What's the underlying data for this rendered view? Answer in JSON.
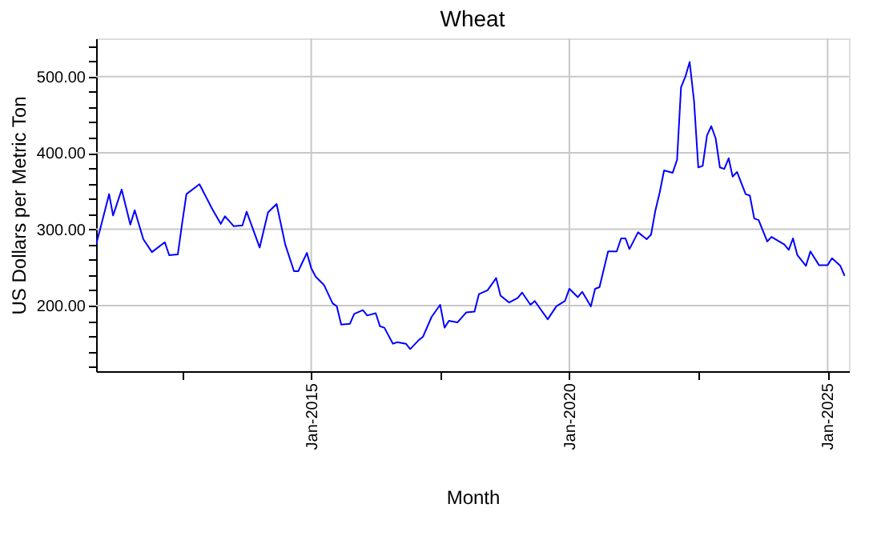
{
  "chart_data": {
    "type": "line",
    "title": "Wheat",
    "xlabel": "Month",
    "ylabel": "US Dollars per Metric Ton",
    "x": [
      "2010-11",
      "2010-12",
      "2011-02",
      "2011-03",
      "2011-05",
      "2011-07",
      "2011-08",
      "2011-10",
      "2011-12",
      "2012-03",
      "2012-04",
      "2012-06",
      "2012-07",
      "2012-08",
      "2012-11",
      "2013-02",
      "2013-04",
      "2013-05",
      "2013-07",
      "2013-09",
      "2013-10",
      "2014-01",
      "2014-03",
      "2014-05",
      "2014-07",
      "2014-09",
      "2014-10",
      "2014-12",
      "2015-01",
      "2015-02",
      "2015-04",
      "2015-06",
      "2015-07",
      "2015-08",
      "2015-10",
      "2015-11",
      "2016-01",
      "2016-02",
      "2016-04",
      "2016-05",
      "2016-06",
      "2016-08",
      "2016-09",
      "2016-11",
      "2016-12",
      "2017-02",
      "2017-03",
      "2017-05",
      "2017-07",
      "2017-08",
      "2017-09",
      "2017-11",
      "2018-01",
      "2018-03",
      "2018-04",
      "2018-06",
      "2018-08",
      "2018-09",
      "2018-11",
      "2019-01",
      "2019-02",
      "2019-04",
      "2019-05",
      "2019-08",
      "2019-10",
      "2019-12",
      "2020-01",
      "2020-03",
      "2020-04",
      "2020-06",
      "2020-07",
      "2020-08",
      "2020-10",
      "2020-12",
      "2021-01",
      "2021-02",
      "2021-03",
      "2021-05",
      "2021-07",
      "2021-08",
      "2021-09",
      "2021-10",
      "2021-11",
      "2022-01",
      "2022-02",
      "2022-03",
      "2022-04",
      "2022-05",
      "2022-06",
      "2022-07",
      "2022-08",
      "2022-09",
      "2022-10",
      "2022-11",
      "2022-12",
      "2023-01",
      "2023-02",
      "2023-03",
      "2023-04",
      "2023-06",
      "2023-07",
      "2023-08",
      "2023-09",
      "2023-11",
      "2023-12",
      "2024-03",
      "2024-04",
      "2024-05",
      "2024-06",
      "2024-08",
      "2024-09",
      "2024-11",
      "2025-01",
      "2025-02",
      "2025-04",
      "2025-05"
    ],
    "series": [
      {
        "color": "#0000ff",
        "values": [
          280,
          301,
          346,
          318,
          352,
          306,
          325,
          287,
          270,
          283,
          266,
          267,
          307,
          346,
          359,
          326,
          307,
          317,
          304,
          305,
          323,
          276,
          322,
          333,
          280,
          245,
          245,
          269,
          249,
          238,
          227,
          203,
          199,
          175,
          176,
          189,
          194,
          187,
          190,
          173,
          171,
          150,
          152,
          150,
          143,
          155,
          159,
          185,
          201,
          171,
          180,
          178,
          191,
          192,
          215,
          220,
          236,
          213,
          204,
          210,
          217,
          201,
          206,
          182,
          199,
          206,
          222,
          211,
          218,
          199,
          222,
          224,
          271,
          271,
          288,
          288,
          274,
          296,
          287,
          293,
          325,
          348,
          377,
          374,
          391,
          486,
          500,
          519,
          468,
          381,
          383,
          423,
          435,
          419,
          381,
          379,
          393,
          369,
          375,
          346,
          344,
          314,
          312,
          284,
          290,
          280,
          273,
          288,
          266,
          252,
          271,
          253,
          253,
          262,
          252,
          239
        ]
      }
    ],
    "xlim": [
      "2010-11-01",
      "2025-06-01"
    ],
    "xticks": [
      {
        "value": "2012-07-01",
        "label": null
      },
      {
        "value": "2015-01-01",
        "label": "Jan-2015"
      },
      {
        "value": "2017-07-01",
        "label": null
      },
      {
        "value": "2020-01-01",
        "label": "Jan-2020"
      },
      {
        "value": "2022-07-01",
        "label": null
      },
      {
        "value": "2025-01-01",
        "label": "Jan-2025"
      }
    ],
    "ylim": [
      114,
      550
    ],
    "yticks": [
      {
        "value": 120,
        "label": null
      },
      {
        "value": 140,
        "label": null
      },
      {
        "value": 160,
        "label": null
      },
      {
        "value": 180,
        "label": null
      },
      {
        "value": 200,
        "label": "200.00"
      },
      {
        "value": 220,
        "label": null
      },
      {
        "value": 240,
        "label": null
      },
      {
        "value": 260,
        "label": null
      },
      {
        "value": 280,
        "label": null
      },
      {
        "value": 300,
        "label": "300.00"
      },
      {
        "value": 320,
        "label": null
      },
      {
        "value": 340,
        "label": null
      },
      {
        "value": 360,
        "label": null
      },
      {
        "value": 380,
        "label": null
      },
      {
        "value": 400,
        "label": "400.00"
      },
      {
        "value": 420,
        "label": null
      },
      {
        "value": 440,
        "label": null
      },
      {
        "value": 460,
        "label": null
      },
      {
        "value": 480,
        "label": null
      },
      {
        "value": 500,
        "label": "500.00"
      },
      {
        "value": 520,
        "label": null
      },
      {
        "value": 540,
        "label": null
      }
    ],
    "grid": true,
    "marker": "none",
    "line_style": "solid"
  }
}
